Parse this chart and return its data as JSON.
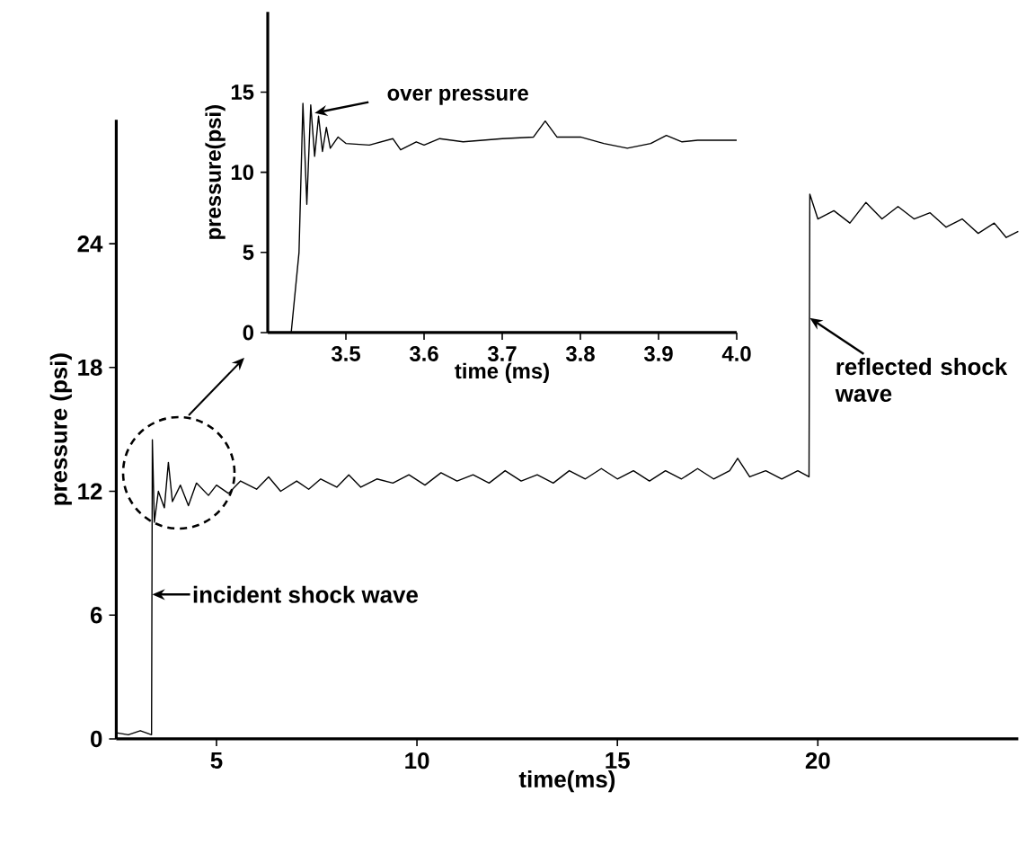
{
  "chart_data": [
    {
      "type": "line",
      "xlabel": "time(ms)",
      "ylabel": "pressure (psi)",
      "color": "#000000",
      "xlim": [
        2.5,
        25
      ],
      "ylim": [
        0,
        30
      ],
      "xticks": [
        5,
        10,
        15,
        20
      ],
      "yticks": [
        0,
        6,
        12,
        18,
        24
      ],
      "x": [
        2.5,
        2.8,
        3.1,
        3.38,
        3.4,
        3.45,
        3.55,
        3.7,
        3.8,
        3.9,
        4.1,
        4.3,
        4.5,
        4.8,
        5.0,
        5.3,
        5.6,
        6.0,
        6.3,
        6.6,
        7.0,
        7.3,
        7.6,
        8.0,
        8.3,
        8.6,
        9.0,
        9.4,
        9.8,
        10.2,
        10.6,
        11.0,
        11.4,
        11.8,
        12.2,
        12.6,
        13.0,
        13.4,
        13.8,
        14.2,
        14.6,
        15.0,
        15.4,
        15.8,
        16.2,
        16.6,
        17.0,
        17.4,
        17.8,
        18.0,
        18.3,
        18.7,
        19.1,
        19.5,
        19.78,
        19.8,
        20.0,
        20.4,
        20.8,
        21.2,
        21.6,
        22.0,
        22.4,
        22.8,
        23.2,
        23.6,
        24.0,
        24.4,
        24.7,
        25.0
      ],
      "values": [
        0.3,
        0.2,
        0.4,
        0.2,
        14.5,
        10.5,
        12,
        11.2,
        13.4,
        11.5,
        12.3,
        11.3,
        12.4,
        11.8,
        12.3,
        11.9,
        12.5,
        12.1,
        12.7,
        12.0,
        12.5,
        12.1,
        12.6,
        12.2,
        12.8,
        12.2,
        12.6,
        12.4,
        12.8,
        12.3,
        12.9,
        12.5,
        12.8,
        12.4,
        13.0,
        12.5,
        12.8,
        12.4,
        13.0,
        12.6,
        13.1,
        12.6,
        13.0,
        12.5,
        13.0,
        12.6,
        13.1,
        12.6,
        13.0,
        13.6,
        12.7,
        13.0,
        12.6,
        13.0,
        12.7,
        26.4,
        25.2,
        25.6,
        25.0,
        26.0,
        25.2,
        25.8,
        25.2,
        25.5,
        24.8,
        25.2,
        24.5,
        25.0,
        24.3,
        24.6
      ],
      "annotations": [
        {
          "text": "incident shock wave",
          "x": 3.4,
          "y": 7
        },
        {
          "text": "reflected shock wave",
          "x": 19.8,
          "y": 20.4
        }
      ]
    },
    {
      "type": "line",
      "xlabel": "time (ms)",
      "ylabel": "pressure(psi)",
      "color": "#000000",
      "xlim": [
        3.4,
        4.0
      ],
      "ylim": [
        0,
        20
      ],
      "xticks": [
        3.5,
        3.6,
        3.7,
        3.8,
        3.9,
        {
          "value": 4.0,
          "label": "4.0"
        }
      ],
      "yticks": [
        0,
        5,
        10,
        15
      ],
      "x": [
        3.4,
        3.43,
        3.44,
        3.445,
        3.45,
        3.455,
        3.46,
        3.465,
        3.47,
        3.475,
        3.48,
        3.49,
        3.5,
        3.53,
        3.56,
        3.57,
        3.59,
        3.6,
        3.62,
        3.65,
        3.7,
        3.74,
        3.755,
        3.77,
        3.8,
        3.83,
        3.86,
        3.89,
        3.91,
        3.93,
        3.95,
        4.0
      ],
      "values": [
        0,
        0,
        5,
        14.3,
        8,
        14.2,
        11,
        13.5,
        11.3,
        12.8,
        11.5,
        12.2,
        11.8,
        11.7,
        12.1,
        11.4,
        11.9,
        11.7,
        12.1,
        11.9,
        12.1,
        12.2,
        13.2,
        12.2,
        12.2,
        11.8,
        11.5,
        11.8,
        12.3,
        11.9,
        12.0,
        12.0
      ],
      "annotations": [
        {
          "text": "over pressure",
          "x": 3.46,
          "y": 13.7
        }
      ]
    }
  ]
}
